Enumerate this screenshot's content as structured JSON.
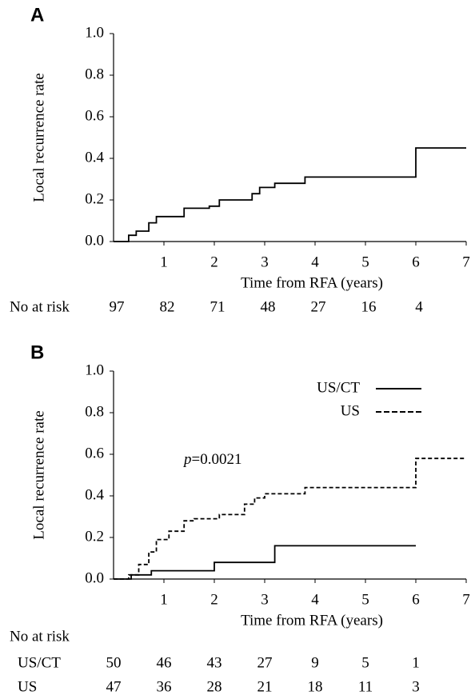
{
  "chart_data": [
    {
      "type": "line",
      "panel": "A",
      "ylabel": "Local recurrence rate",
      "xlabel": "Time from RFA (years)",
      "xlim": [
        0,
        7
      ],
      "ylim": [
        0,
        1
      ],
      "xticks": [
        1,
        2,
        3,
        4,
        5,
        6,
        7
      ],
      "yticks": [
        {
          "value": 0,
          "label": "0.0"
        },
        {
          "value": 0.2,
          "label": "0.2"
        },
        {
          "value": 0.4,
          "label": "0.4"
        },
        {
          "value": 0.6,
          "label": "0.6"
        },
        {
          "value": 0.8,
          "label": "0.8"
        },
        {
          "value": 1,
          "label": "1.0"
        }
      ],
      "series": [
        {
          "color": "#000000",
          "dash": "solid",
          "x": [
            0,
            0.3,
            0.3,
            0.45,
            0.45,
            0.7,
            0.7,
            0.85,
            0.85,
            1.4,
            1.4,
            1.9,
            1.9,
            2.1,
            2.1,
            2.75,
            2.75,
            2.9,
            2.9,
            3.2,
            3.2,
            3.8,
            3.8,
            6.0,
            6.0,
            7.0
          ],
          "values": [
            0,
            0,
            0.03,
            0.03,
            0.05,
            0.05,
            0.09,
            0.09,
            0.12,
            0.12,
            0.16,
            0.16,
            0.17,
            0.17,
            0.2,
            0.2,
            0.23,
            0.23,
            0.26,
            0.26,
            0.28,
            0.28,
            0.31,
            0.31,
            0.45,
            0.45
          ]
        }
      ],
      "risk_table": {
        "label": "No at risk",
        "times": [
          0,
          1,
          2,
          3,
          4,
          5,
          6
        ],
        "rows": [
          {
            "values": [
              97,
              82,
              71,
              48,
              27,
              16,
              4
            ]
          }
        ]
      }
    },
    {
      "type": "line",
      "panel": "B",
      "ylabel": "Local recurrence rate",
      "xlabel": "Time from RFA (years)",
      "xlim": [
        0,
        7
      ],
      "ylim": [
        0,
        1
      ],
      "xticks": [
        1,
        2,
        3,
        4,
        5,
        6,
        7
      ],
      "yticks": [
        {
          "value": 0,
          "label": "0.0"
        },
        {
          "value": 0.2,
          "label": "0.2"
        },
        {
          "value": 0.4,
          "label": "0.4"
        },
        {
          "value": 0.6,
          "label": "0.6"
        },
        {
          "value": 0.8,
          "label": "0.8"
        },
        {
          "value": 1,
          "label": "1.0"
        }
      ],
      "legend": "upper right",
      "annotation": {
        "italic": "p",
        "text": "=0.0021"
      },
      "series": [
        {
          "name": "US/CT",
          "color": "#000000",
          "dash": "solid",
          "x": [
            0,
            0.35,
            0.35,
            0.75,
            0.75,
            2.0,
            2.0,
            3.2,
            3.2,
            6.0
          ],
          "values": [
            0,
            0,
            0.02,
            0.02,
            0.04,
            0.04,
            0.08,
            0.08,
            0.16,
            0.16
          ]
        },
        {
          "name": "US",
          "color": "#000000",
          "dash": "dashed",
          "x": [
            0,
            0.3,
            0.3,
            0.5,
            0.5,
            0.7,
            0.7,
            0.85,
            0.85,
            1.1,
            1.1,
            1.4,
            1.4,
            1.6,
            1.6,
            2.1,
            2.1,
            2.6,
            2.6,
            2.8,
            2.8,
            3.0,
            3.0,
            3.8,
            3.8,
            6.0,
            6.0,
            7.0
          ],
          "values": [
            0,
            0,
            0.02,
            0.02,
            0.07,
            0.07,
            0.13,
            0.13,
            0.19,
            0.19,
            0.23,
            0.23,
            0.28,
            0.28,
            0.29,
            0.29,
            0.31,
            0.31,
            0.36,
            0.36,
            0.39,
            0.39,
            0.41,
            0.41,
            0.44,
            0.44,
            0.58,
            0.58
          ]
        }
      ],
      "risk_table": {
        "label": "No at risk",
        "times": [
          0,
          1,
          2,
          3,
          4,
          5,
          6
        ],
        "rows": [
          {
            "name": "US/CT",
            "values": [
              50,
              46,
              43,
              27,
              9,
              5,
              1
            ]
          },
          {
            "name": "US",
            "values": [
              47,
              36,
              28,
              21,
              18,
              11,
              3
            ]
          }
        ]
      }
    }
  ]
}
